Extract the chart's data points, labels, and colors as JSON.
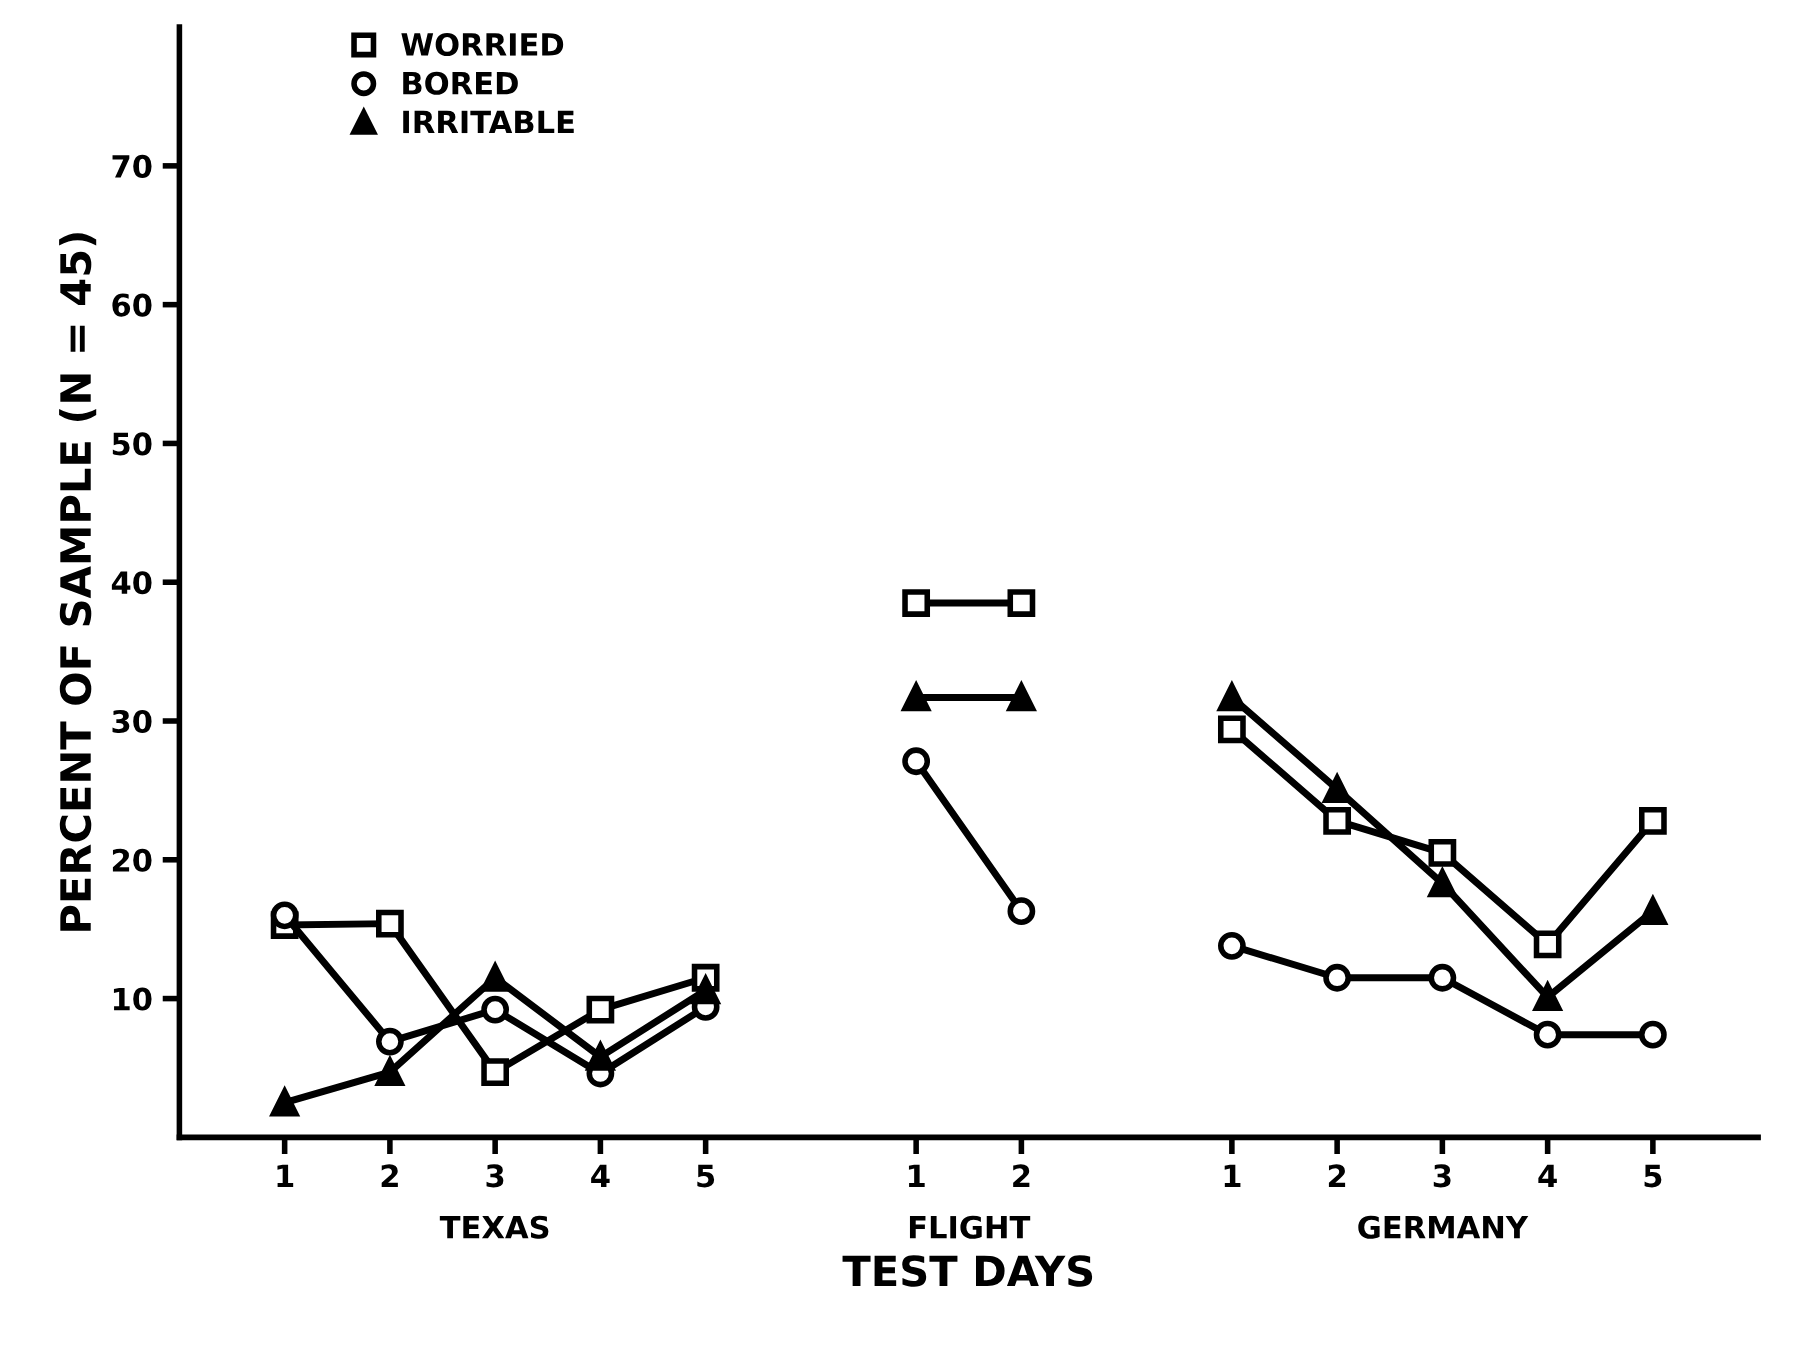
{
  "chart_data": {
    "type": "line",
    "xlabel": "TEST DAYS",
    "ylabel": "PERCENT OF SAMPLE (N = 45)",
    "categories": [
      "1",
      "2",
      "3",
      "4",
      "5",
      null,
      "1",
      "2",
      null,
      "1",
      "2",
      "3",
      "4",
      "5"
    ],
    "annotations": [
      "TEXAS",
      "FLIGHT",
      "GERMANY"
    ],
    "series": [
      {
        "name": "WORRIED",
        "color": "#000000",
        "marker": "square",
        "values": [
          15.3,
          15.4,
          4.7,
          9.2,
          11.5,
          null,
          38.5,
          38.5,
          null,
          29.4,
          22.8,
          20.5,
          13.9,
          22.8
        ]
      },
      {
        "name": "BORED",
        "color": "#000000",
        "marker": "circle",
        "values": [
          16,
          6.9,
          9.2,
          4.6,
          9.4,
          null,
          27.1,
          16.3,
          null,
          13.8,
          11.5,
          11.5,
          7.4,
          7.4
        ]
      },
      {
        "name": "IRRITABLE",
        "color": "#000000",
        "marker": "triangle",
        "values": [
          2.5,
          4.7,
          11.5,
          5.8,
          10.6,
          null,
          31.7,
          31.7,
          null,
          31.7,
          25.1,
          18.3,
          10.1,
          16.3
        ]
      }
    ],
    "ylim": [
      0,
      80
    ],
    "yticks": [
      10,
      20,
      30,
      40,
      50,
      60,
      70
    ],
    "grid": false,
    "legend": "top left",
    "line_style": "solid"
  }
}
